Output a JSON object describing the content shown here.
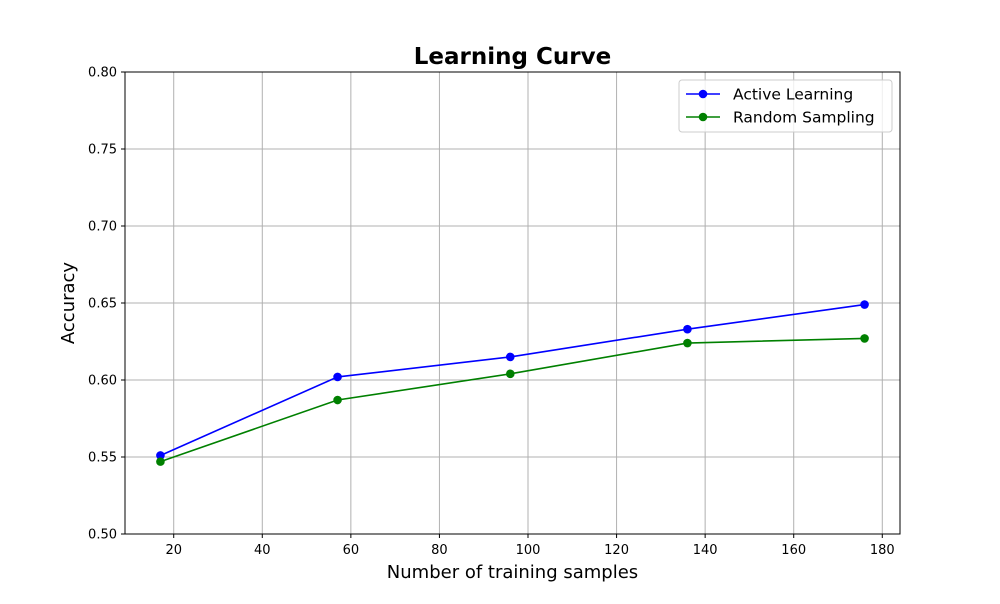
{
  "chart_data": {
    "type": "line",
    "title": "Learning Curve",
    "xlabel": "Number of training samples",
    "ylabel": "Accuracy",
    "xlim": [
      9,
      184
    ],
    "ylim": [
      0.5,
      0.8
    ],
    "xticks": [
      20,
      40,
      60,
      80,
      100,
      120,
      140,
      160,
      180
    ],
    "yticks": [
      0.5,
      0.55,
      0.6,
      0.65,
      0.7,
      0.75,
      0.8
    ],
    "xtick_labels": [
      "20",
      "40",
      "60",
      "80",
      "100",
      "120",
      "140",
      "160",
      "180"
    ],
    "ytick_labels": [
      "0.50",
      "0.55",
      "0.60",
      "0.65",
      "0.70",
      "0.75",
      "0.80"
    ],
    "grid": true,
    "legend_position": "top-right",
    "x": [
      17,
      57,
      96,
      136,
      176
    ],
    "series": [
      {
        "name": "Active Learning",
        "color": "#0000ff",
        "marker": "circle",
        "values": [
          0.551,
          0.602,
          0.615,
          0.633,
          0.649
        ]
      },
      {
        "name": "Random Sampling",
        "color": "#008000",
        "marker": "circle",
        "values": [
          0.547,
          0.587,
          0.604,
          0.624,
          0.627
        ]
      }
    ]
  }
}
